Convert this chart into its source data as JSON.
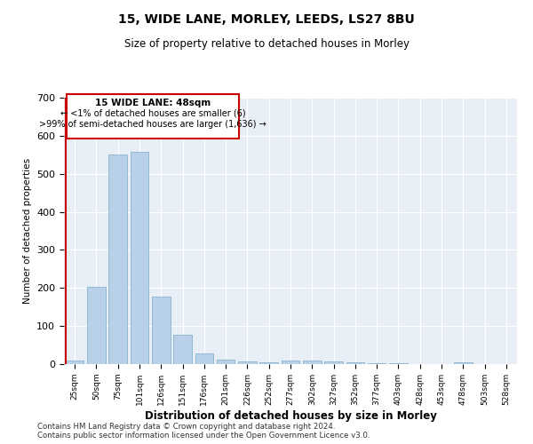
{
  "title": "15, WIDE LANE, MORLEY, LEEDS, LS27 8BU",
  "subtitle": "Size of property relative to detached houses in Morley",
  "xlabel": "Distribution of detached houses by size in Morley",
  "ylabel": "Number of detached properties",
  "bar_color": "#b8d0e8",
  "bar_edge_color": "#7aaac8",
  "background_color": "#e8eef5",
  "grid_color": "#ffffff",
  "annotation_box_color": "#ffffff",
  "annotation_box_edge": "#cc0000",
  "red_line_color": "#cc0000",
  "categories": [
    "25sqm",
    "50sqm",
    "75sqm",
    "101sqm",
    "126sqm",
    "151sqm",
    "176sqm",
    "201sqm",
    "226sqm",
    "252sqm",
    "277sqm",
    "302sqm",
    "327sqm",
    "352sqm",
    "377sqm",
    "403sqm",
    "428sqm",
    "453sqm",
    "478sqm",
    "503sqm",
    "528sqm"
  ],
  "values": [
    10,
    204,
    551,
    557,
    178,
    78,
    27,
    11,
    8,
    5,
    10,
    10,
    7,
    5,
    3,
    2,
    0,
    0,
    5,
    1,
    0
  ],
  "ylim": [
    0,
    700
  ],
  "yticks": [
    0,
    100,
    200,
    300,
    400,
    500,
    600,
    700
  ],
  "property_bin_index": 0,
  "annotation_line1": "15 WIDE LANE: 48sqm",
  "annotation_line2": "← <1% of detached houses are smaller (6)",
  "annotation_line3": ">99% of semi-detached houses are larger (1,636) →",
  "footer_line1": "Contains HM Land Registry data © Crown copyright and database right 2024.",
  "footer_line2": "Contains public sector information licensed under the Open Government Licence v3.0."
}
